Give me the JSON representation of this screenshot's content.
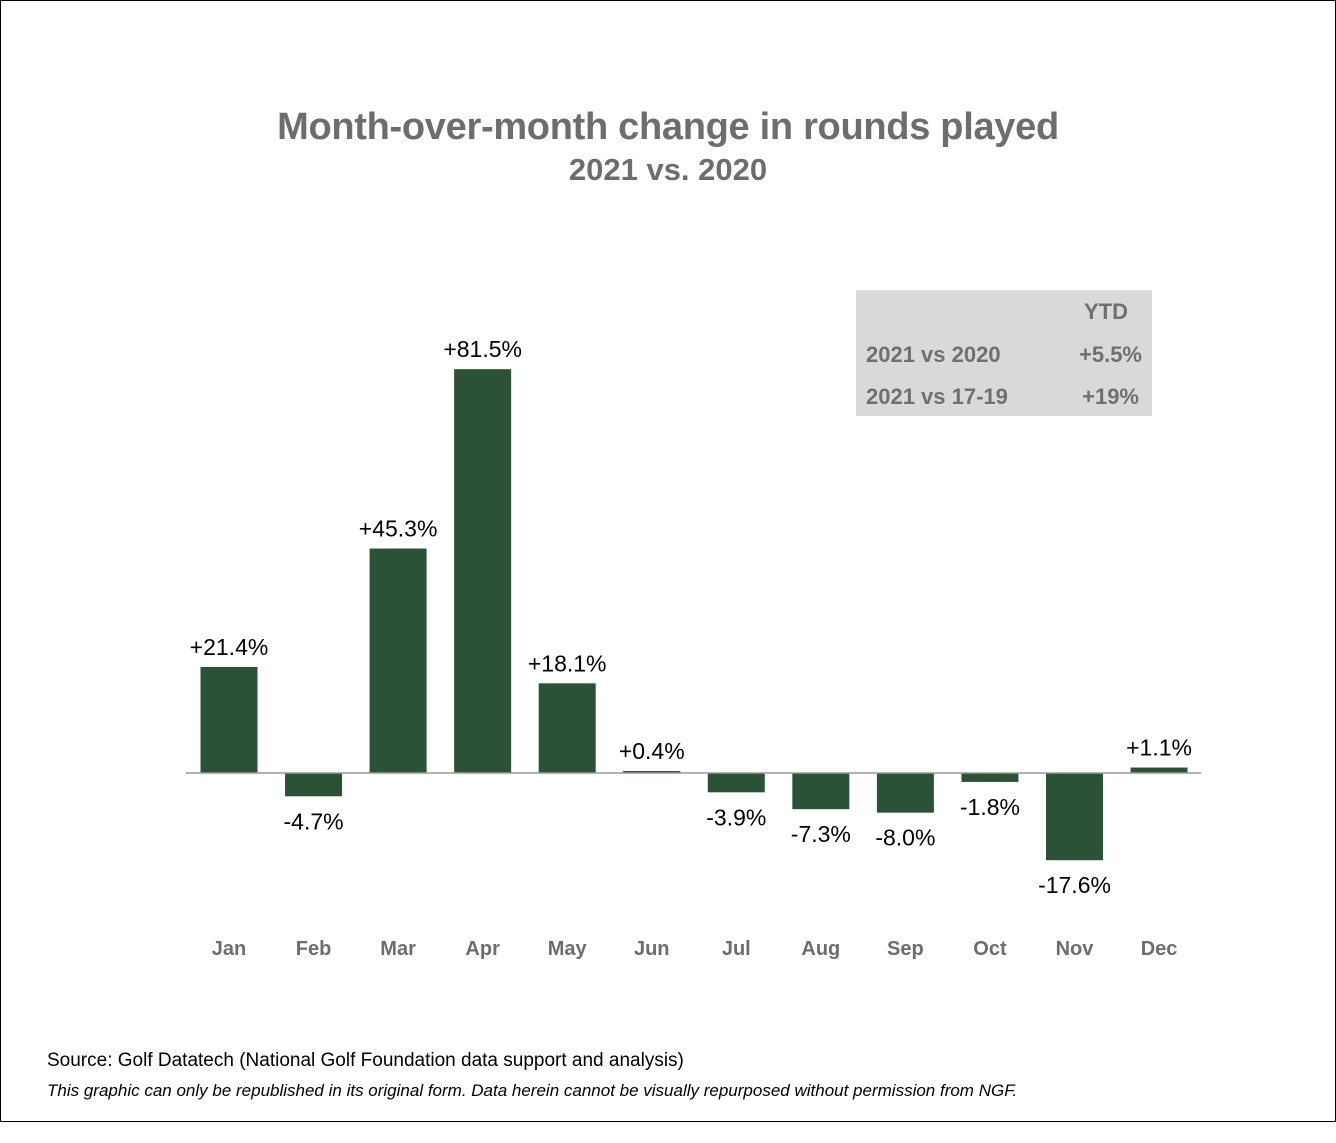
{
  "title": "Month-over-month change in rounds played",
  "subtitle": "2021 vs. 2020",
  "ytd_table": {
    "header": "YTD",
    "rows": [
      {
        "label": "2021 vs 2020",
        "value": "+5.5%"
      },
      {
        "label": "2021 vs 17-19",
        "value": "+19%"
      }
    ]
  },
  "source": "Source: Golf Datatech (National Golf Foundation data support and analysis)",
  "disclaimer": "This graphic can only be republished in its original form. Data herein cannot be visually repurposed without permission from NGF.",
  "chart_data": {
    "type": "bar",
    "categories": [
      "Jan",
      "Feb",
      "Mar",
      "Apr",
      "May",
      "Jun",
      "Jul",
      "Aug",
      "Sep",
      "Oct",
      "Nov",
      "Dec"
    ],
    "values": [
      21.4,
      -4.7,
      45.3,
      81.5,
      18.1,
      0.4,
      -3.9,
      -7.3,
      -8.0,
      -1.8,
      -17.6,
      1.1
    ],
    "data_labels": [
      "+21.4%",
      "-4.7%",
      "+45.3%",
      "+81.5%",
      "+18.1%",
      "+0.4%",
      "-3.9%",
      "-7.3%",
      "-8.0%",
      "-1.8%",
      "-17.6%",
      "+1.1%"
    ],
    "bar_color": "#2b5136",
    "title": "Month-over-month change in rounds played",
    "subtitle": "2021 vs. 2020",
    "xlabel": "",
    "ylabel": "",
    "grid": false,
    "legend": "none"
  }
}
